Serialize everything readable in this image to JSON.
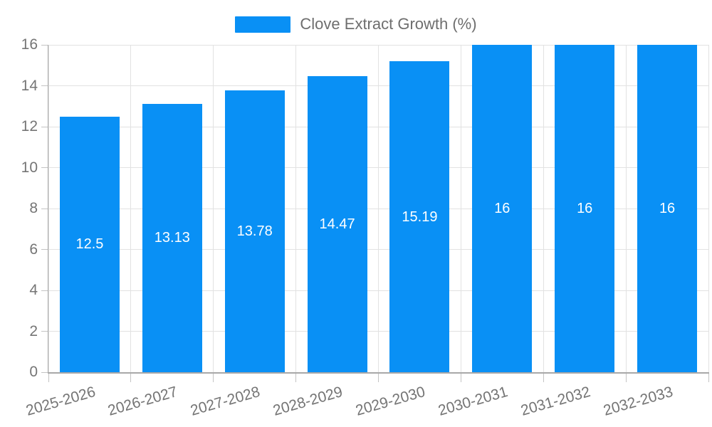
{
  "chart_data": {
    "type": "bar",
    "title": "Clove Extract Growth (%)",
    "series_name": "Clove Extract Growth (%)",
    "categories": [
      "2025-2026",
      "2026-2027",
      "2027-2028",
      "2028-2029",
      "2029-2030",
      "2030-2031",
      "2031-2032",
      "2032-2033"
    ],
    "values": [
      12.5,
      13.13,
      13.78,
      14.47,
      15.19,
      16,
      16,
      16
    ],
    "value_labels": [
      "12.5",
      "13.13",
      "13.78",
      "14.47",
      "15.19",
      "16",
      "16",
      "16"
    ],
    "xlabel": "",
    "ylabel": "",
    "ylim": [
      0,
      16
    ],
    "yticks": [
      0,
      2,
      4,
      6,
      8,
      10,
      12,
      14,
      16
    ],
    "grid": true,
    "legend_position": "top-center",
    "value_label_position": "inside-center",
    "x_tick_label_rotation_deg": -16
  },
  "colors": {
    "bar": "#0990f5",
    "grid_line": "#e2e2e2",
    "axis_line": "#a8a8a8",
    "tick_mark": "#c4c4c4",
    "axis_text": "#757575",
    "legend_text": "#6e6e6e",
    "value_text": "#ffffff",
    "background": "#ffffff"
  }
}
